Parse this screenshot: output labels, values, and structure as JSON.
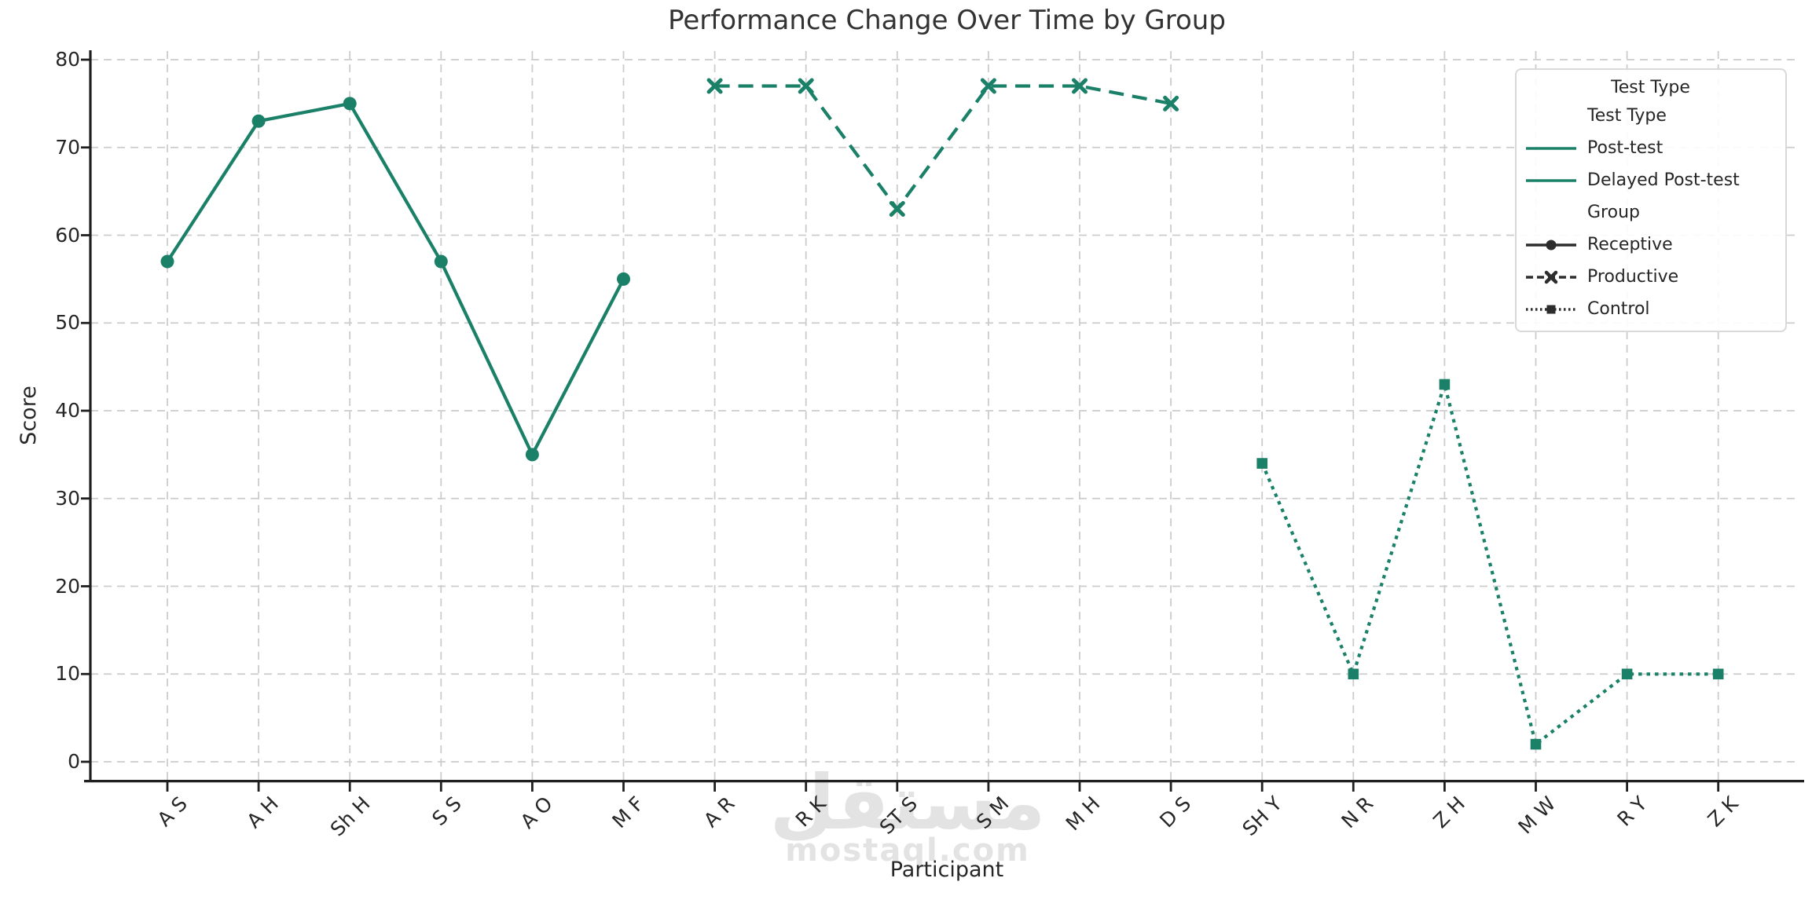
{
  "title": "Performance Change Over Time by Group",
  "axes": {
    "x_label": "Participant",
    "y_label": "Score"
  },
  "watermark": {
    "arabic": "مستقل",
    "latin": "mostaql.com"
  },
  "colors": {
    "accent_teal": "#1a8068",
    "legend_line_dark": "#2d2d2d",
    "grid": "#cccccc",
    "spine": "#1f1f1f",
    "text": "#262626",
    "title_text": "#333333",
    "watermark": "#e3e3e3",
    "legend_border": "#d9d9d9"
  },
  "legend": {
    "title": "Test Type",
    "sections": [
      {
        "header": "Test Type",
        "items": [
          {
            "label": "Post-test",
            "line": "solid",
            "marker": "none",
            "color": "teal"
          },
          {
            "label": "Delayed Post-test",
            "line": "solid",
            "marker": "none",
            "color": "teal"
          }
        ]
      },
      {
        "header": "Group",
        "items": [
          {
            "label": "Receptive",
            "line": "solid",
            "marker": "circle",
            "color": "dark"
          },
          {
            "label": "Productive",
            "line": "dashed",
            "marker": "x",
            "color": "dark"
          },
          {
            "label": "Control",
            "line": "dotted",
            "marker": "square",
            "color": "dark"
          }
        ]
      }
    ]
  },
  "chart_data": {
    "type": "line",
    "title": "Performance Change Over Time by Group",
    "xlabel": "Participant",
    "ylabel": "Score",
    "categories": [
      "A S",
      "A H",
      "Sh H",
      "S S",
      "A O",
      "M F",
      "A R",
      "R K",
      "ST S",
      "S M",
      "M H",
      "D S",
      "SH Y",
      "N R",
      "Z H",
      "M W",
      "R Y",
      "Z K"
    ],
    "y_ticks": [
      0,
      10,
      20,
      30,
      40,
      50,
      60,
      70,
      80
    ],
    "ylim": [
      -2,
      81
    ],
    "grid": true,
    "legend_position": "upper right",
    "series": [
      {
        "name": "Receptive",
        "style": {
          "line": "solid",
          "marker": "circle"
        },
        "x": [
          "A S",
          "A H",
          "Sh H",
          "S S",
          "A O",
          "M F"
        ],
        "values": [
          57,
          73,
          75,
          57,
          35,
          55
        ]
      },
      {
        "name": "Productive",
        "style": {
          "line": "dashed",
          "marker": "x"
        },
        "x": [
          "A R",
          "R K",
          "ST S",
          "S M",
          "M H",
          "D S"
        ],
        "values": [
          77,
          77,
          63,
          77,
          77,
          75
        ]
      },
      {
        "name": "Control",
        "style": {
          "line": "dotted",
          "marker": "square"
        },
        "x": [
          "SH Y",
          "N R",
          "Z H",
          "M W",
          "R Y",
          "Z K"
        ],
        "values": [
          34,
          10,
          43,
          2,
          10,
          10
        ]
      }
    ]
  }
}
